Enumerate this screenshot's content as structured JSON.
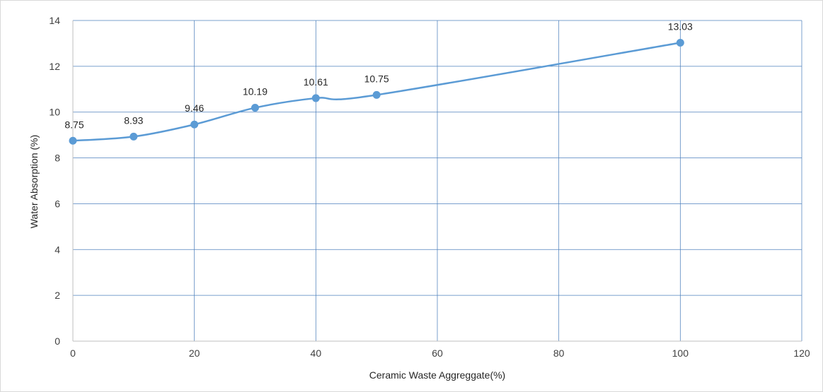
{
  "chart_data": {
    "type": "line",
    "title": "",
    "xlabel": "Ceramic Waste Aggreggate(%)",
    "ylabel": "Water Absorption (%)",
    "xlim": [
      0,
      120
    ],
    "ylim": [
      0,
      14
    ],
    "xticks": [
      0,
      20,
      40,
      60,
      80,
      100,
      120
    ],
    "yticks": [
      0,
      2,
      4,
      6,
      8,
      10,
      12,
      14
    ],
    "x_tick_labels": [
      "0",
      "20",
      "40",
      "60",
      "80",
      "100",
      "120"
    ],
    "y_tick_labels": [
      "0",
      "2",
      "4",
      "6",
      "8",
      "10",
      "12",
      "14"
    ],
    "grid": true,
    "legend": "none",
    "smooth": true,
    "series": [
      {
        "color": "#5b9bd5",
        "points": [
          {
            "x": 0,
            "y": 8.75,
            "label": "8.75"
          },
          {
            "x": 10,
            "y": 8.93,
            "label": "8.93"
          },
          {
            "x": 20,
            "y": 9.46,
            "label": "9.46"
          },
          {
            "x": 30,
            "y": 10.19,
            "label": "10.19"
          },
          {
            "x": 40,
            "y": 10.61,
            "label": "10.61"
          },
          {
            "x": 50,
            "y": 10.75,
            "label": "10.75"
          },
          {
            "x": 100,
            "y": 13.03,
            "label": "13.03"
          }
        ]
      }
    ],
    "colors": {
      "grid": "#4f81bd",
      "axis": "#bfbfbf",
      "series": "#5b9bd5"
    }
  }
}
